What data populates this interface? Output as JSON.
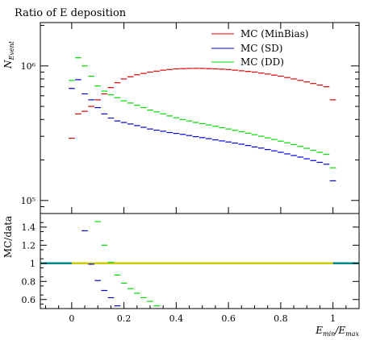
{
  "chart_data": [
    {
      "type": "scatter",
      "title": "Ratio of E deposition",
      "ylabel": "N_Event",
      "xlim": [
        -0.12,
        1.1
      ],
      "ylim": [
        80000,
        2100000
      ],
      "log_y": true,
      "y_ticks": [
        {
          "value": 100000,
          "label": "10⁵"
        },
        {
          "value": 1000000,
          "label": "10⁶"
        }
      ],
      "legend_position": "top-right",
      "x": [
        0.0,
        0.025,
        0.05,
        0.075,
        0.1,
        0.125,
        0.15,
        0.175,
        0.2,
        0.225,
        0.25,
        0.275,
        0.3,
        0.325,
        0.35,
        0.375,
        0.4,
        0.425,
        0.45,
        0.475,
        0.5,
        0.525,
        0.55,
        0.575,
        0.6,
        0.625,
        0.65,
        0.675,
        0.7,
        0.725,
        0.75,
        0.775,
        0.8,
        0.825,
        0.85,
        0.875,
        0.9,
        0.925,
        0.95,
        0.975,
        1.0
      ],
      "series": [
        {
          "name": "MC (MinBias)",
          "color": "#dd0000",
          "values": [
            290000,
            440000,
            460000,
            500000,
            560000,
            620000,
            690000,
            750000,
            800000,
            830000,
            860000,
            880000,
            900000,
            915000,
            930000,
            940000,
            950000,
            955000,
            958000,
            960000,
            958000,
            955000,
            950000,
            945000,
            940000,
            930000,
            920000,
            910000,
            900000,
            885000,
            870000,
            855000,
            840000,
            820000,
            800000,
            780000,
            760000,
            740000,
            720000,
            700000,
            560000
          ]
        },
        {
          "name": "MC (SD)",
          "color": "#0000dd",
          "values": [
            680000,
            790000,
            620000,
            560000,
            490000,
            440000,
            410000,
            390000,
            380000,
            370000,
            360000,
            350000,
            340000,
            333000,
            327000,
            320000,
            315000,
            310000,
            304000,
            298000,
            293000,
            288000,
            282000,
            277000,
            272000,
            267000,
            262000,
            256000,
            250000,
            245000,
            239000,
            234000,
            228000,
            222000,
            216000,
            210000,
            204000,
            198000,
            192000,
            186000,
            140000
          ]
        },
        {
          "name": "MC (DD)",
          "color": "#00dd00",
          "values": [
            780000,
            1150000,
            1000000,
            840000,
            710000,
            650000,
            610000,
            580000,
            550000,
            530000,
            510000,
            490000,
            470000,
            455000,
            440000,
            425000,
            412000,
            400000,
            390000,
            380000,
            372000,
            364000,
            356000,
            348000,
            340000,
            332000,
            324000,
            316000,
            308000,
            300000,
            292000,
            284000,
            276000,
            268000,
            260000,
            252000,
            244000,
            236000,
            228000,
            220000,
            175000
          ]
        }
      ]
    },
    {
      "type": "scatter",
      "ylabel": "MC/data",
      "xlabel": "E_min/E_max",
      "xlim": [
        -0.12,
        1.1
      ],
      "ylim": [
        0.5,
        1.55
      ],
      "x_ticks": [
        0,
        0.2,
        0.4,
        0.6,
        0.8,
        1
      ],
      "y_ticks": [
        0.6,
        0.8,
        1,
        1.2,
        1.4
      ],
      "reference_line": 1,
      "reference_band_color": "#cccc00",
      "reference_line_color": "#008888",
      "series": [
        {
          "name": "MC (SD)",
          "color": "#0000dd",
          "x": [
            0.05,
            0.075,
            0.1,
            0.125,
            0.15,
            0.175
          ],
          "values": [
            1.36,
            0.99,
            0.81,
            0.7,
            0.62,
            0.53
          ]
        },
        {
          "name": "MC (DD)",
          "color": "#00dd00",
          "x": [
            0.1,
            0.125,
            0.15,
            0.175,
            0.2,
            0.225,
            0.25,
            0.275,
            0.3,
            0.325
          ],
          "values": [
            1.46,
            1.2,
            1.01,
            0.87,
            0.78,
            0.72,
            0.67,
            0.62,
            0.58,
            0.53
          ]
        }
      ]
    }
  ]
}
